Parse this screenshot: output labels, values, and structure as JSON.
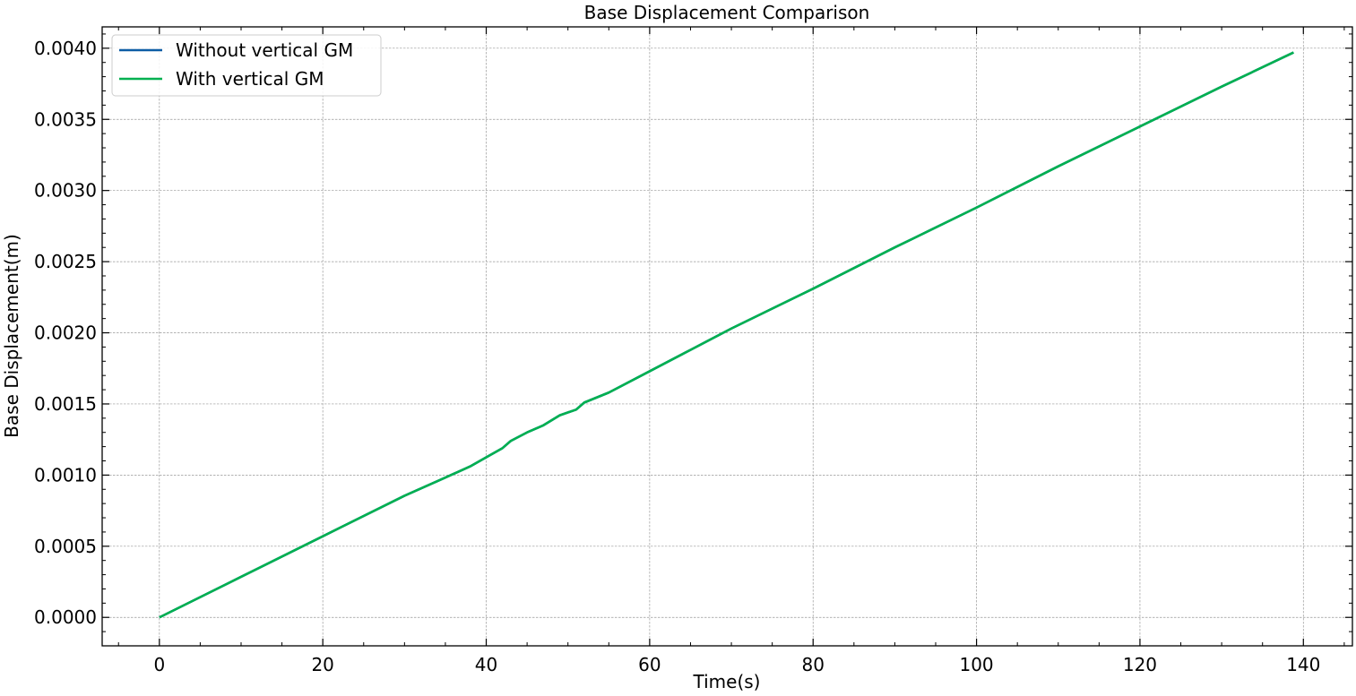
{
  "chart_data": {
    "type": "line",
    "title": "Base Displacement Comparison",
    "xlabel": "Time(s)",
    "ylabel": "Base Displacement(m)",
    "xlim": [
      -7,
      146
    ],
    "ylim": [
      -0.0002,
      0.00415
    ],
    "x_ticks": [
      0,
      20,
      40,
      60,
      80,
      100,
      120,
      140
    ],
    "x_tick_labels": [
      "0",
      "20",
      "40",
      "60",
      "80",
      "100",
      "120",
      "140"
    ],
    "y_ticks": [
      0.0,
      0.0005,
      0.001,
      0.0015,
      0.002,
      0.0025,
      0.003,
      0.0035,
      0.004
    ],
    "y_tick_labels": [
      "0.0000",
      "0.0005",
      "0.0010",
      "0.0015",
      "0.0020",
      "0.0025",
      "0.0030",
      "0.0035",
      "0.0040"
    ],
    "grid": true,
    "legend_position": "top-left",
    "series": [
      {
        "name": "Without vertical GM",
        "color": "#0C5DA5",
        "x": [
          0,
          10,
          20,
          30,
          34.5,
          38,
          42,
          43,
          45,
          47,
          49,
          51,
          52,
          55,
          60,
          65,
          70,
          80,
          90,
          100,
          110,
          120,
          130,
          138.8
        ],
        "y": [
          0.0,
          0.000285,
          0.00057,
          0.000855,
          0.00097,
          0.00106,
          0.00119,
          0.00124,
          0.0013,
          0.00135,
          0.00142,
          0.00146,
          0.00151,
          0.00158,
          0.00173,
          0.00188,
          0.00203,
          0.00231,
          0.0026,
          0.00288,
          0.00317,
          0.00345,
          0.00373,
          0.00397
        ]
      },
      {
        "name": "With vertical GM",
        "color": "#00B050",
        "x": [
          0,
          10,
          20,
          30,
          34.5,
          38,
          42,
          43,
          45,
          47,
          49,
          51,
          52,
          55,
          60,
          65,
          70,
          80,
          90,
          100,
          110,
          120,
          130,
          138.8
        ],
        "y": [
          0.0,
          0.000285,
          0.00057,
          0.000855,
          0.00097,
          0.00106,
          0.00119,
          0.00124,
          0.0013,
          0.00135,
          0.00142,
          0.00146,
          0.00151,
          0.00158,
          0.00173,
          0.00188,
          0.00203,
          0.00231,
          0.0026,
          0.00288,
          0.00317,
          0.00345,
          0.00373,
          0.00397
        ]
      }
    ]
  }
}
